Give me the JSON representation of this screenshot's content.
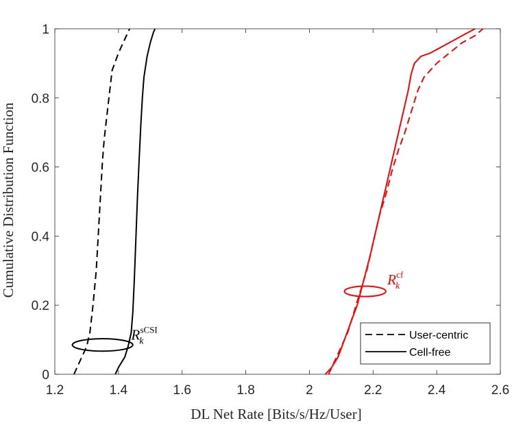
{
  "chart_data": {
    "type": "line",
    "xlabel": "DL Net Rate [Bits/s/Hz/User]",
    "ylabel": "Cumulative Distribution Function",
    "xlim": [
      1.2,
      2.6
    ],
    "ylim": [
      0,
      1
    ],
    "xticks": [
      "1.2",
      "1.4",
      "1.6",
      "1.8",
      "2",
      "2.2",
      "2.4",
      "2.6"
    ],
    "yticks": [
      "0",
      "0.2",
      "0.4",
      "0.6",
      "0.8",
      "1"
    ],
    "grid": false,
    "legend_position": "bottom-right",
    "legend": [
      {
        "label": "User-centric",
        "style": "dashed"
      },
      {
        "label": "Cell-free",
        "style": "solid"
      }
    ],
    "series": [
      {
        "name": "User-centric",
        "color": "#000000",
        "style": "dashed",
        "x": [
          1.26,
          1.28,
          1.3,
          1.31,
          1.315,
          1.32,
          1.33,
          1.335,
          1.34,
          1.345,
          1.35,
          1.355,
          1.36,
          1.37,
          1.38,
          1.4,
          1.42,
          1.435
        ],
        "y": [
          0,
          0.04,
          0.08,
          0.12,
          0.16,
          0.2,
          0.3,
          0.38,
          0.46,
          0.54,
          0.62,
          0.68,
          0.72,
          0.8,
          0.88,
          0.93,
          0.97,
          1.0
        ]
      },
      {
        "name": "Cell-free",
        "color": "#000000",
        "style": "solid",
        "x": [
          1.39,
          1.4,
          1.42,
          1.43,
          1.44,
          1.445,
          1.45,
          1.455,
          1.46,
          1.465,
          1.47,
          1.475,
          1.48,
          1.49,
          1.5,
          1.51,
          1.515
        ],
        "y": [
          0,
          0.02,
          0.05,
          0.08,
          0.12,
          0.18,
          0.28,
          0.4,
          0.52,
          0.62,
          0.72,
          0.8,
          0.86,
          0.92,
          0.96,
          0.99,
          1.0
        ]
      },
      {
        "name": "User-centric",
        "color": "#ff0000",
        "style": "dashed",
        "x": [
          2.06,
          2.08,
          2.1,
          2.12,
          2.14,
          2.16,
          2.18,
          2.2,
          2.22,
          2.24,
          2.26,
          2.28,
          2.3,
          2.32,
          2.34,
          2.36,
          2.4,
          2.44,
          2.48,
          2.52,
          2.545
        ],
        "y": [
          0,
          0.04,
          0.08,
          0.12,
          0.18,
          0.24,
          0.3,
          0.38,
          0.46,
          0.52,
          0.59,
          0.65,
          0.7,
          0.76,
          0.82,
          0.86,
          0.9,
          0.93,
          0.96,
          0.98,
          1.0
        ]
      },
      {
        "name": "Cell-free",
        "color": "#ff0000",
        "style": "solid",
        "x": [
          2.05,
          2.07,
          2.09,
          2.11,
          2.13,
          2.15,
          2.17,
          2.19,
          2.21,
          2.23,
          2.25,
          2.27,
          2.29,
          2.31,
          2.32,
          2.33,
          2.35,
          2.38,
          2.42,
          2.46,
          2.5,
          2.52
        ],
        "y": [
          0,
          0.02,
          0.05,
          0.1,
          0.15,
          0.2,
          0.27,
          0.34,
          0.42,
          0.5,
          0.58,
          0.66,
          0.74,
          0.82,
          0.87,
          0.9,
          0.92,
          0.93,
          0.95,
          0.97,
          0.99,
          1.0
        ]
      }
    ],
    "annotations": [
      {
        "base": "R",
        "sub": "k",
        "sup": "sCSI",
        "color": "#000000",
        "x": 1.44,
        "y": 0.1,
        "ellipse": {
          "cx": 1.35,
          "cy": 0.085,
          "rx": 0.095,
          "ry": 0.018
        }
      },
      {
        "base": "R",
        "sub": "k",
        "sup": "cf",
        "color": "#ff0000",
        "x": 2.245,
        "y": 0.26,
        "ellipse": {
          "cx": 2.175,
          "cy": 0.24,
          "rx": 0.065,
          "ry": 0.015
        }
      }
    ]
  }
}
